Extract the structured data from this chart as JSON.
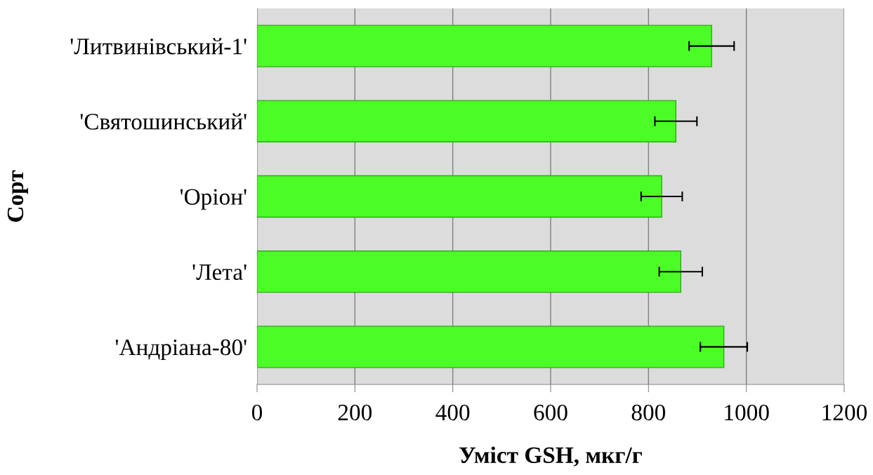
{
  "chart_data": {
    "type": "bar",
    "orientation": "horizontal",
    "xlabel": "Уміст GSH, мкг/г",
    "ylabel": "Сорт",
    "categories": [
      "'Литвинівський-1'",
      "'Святошинський'",
      "'Оріон'",
      "'Лета'",
      "'Андріана-80'"
    ],
    "values": [
      929,
      856,
      827,
      866,
      954
    ],
    "errors": [
      46,
      43,
      42,
      44,
      48
    ],
    "color": "#4cfc26",
    "xlim": [
      0,
      1200
    ],
    "xticks": [
      0,
      200,
      400,
      600,
      800,
      1000,
      1200
    ],
    "grid": "x"
  }
}
